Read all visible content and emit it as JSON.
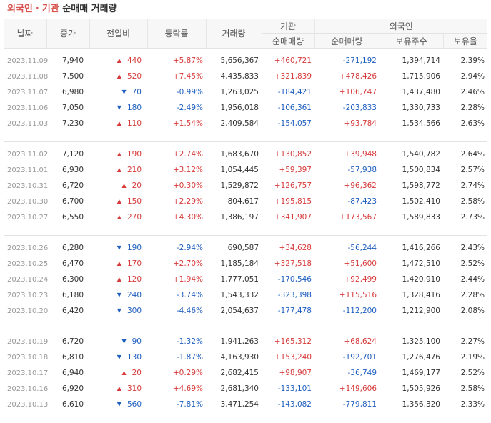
{
  "title": {
    "part1": "외국인",
    "dot": "·",
    "part2": "기관",
    "part3": "순매매 거래량"
  },
  "header": {
    "date": "날짜",
    "close": "종가",
    "change": "전일비",
    "rate": "등락률",
    "volume": "거래량",
    "institution": "기관",
    "foreigner": "외국인",
    "inst_net": "순매매량",
    "foreign_net": "순매매량",
    "holding": "보유주수",
    "ratio": "보유율"
  },
  "colors": {
    "up": "#d63a3a",
    "down": "#1f5fbf"
  },
  "groups": [
    [
      {
        "date": "2023.11.09",
        "close": "7,940",
        "dir": "up",
        "change": "440",
        "rate": "+5.87%",
        "volume": "5,656,367",
        "inst": "+460,721",
        "foreign": "-271,192",
        "holding": "1,394,714",
        "ratio": "2.39%"
      },
      {
        "date": "2023.11.08",
        "close": "7,500",
        "dir": "up",
        "change": "520",
        "rate": "+7.45%",
        "volume": "4,435,833",
        "inst": "+321,839",
        "foreign": "+478,426",
        "holding": "1,715,906",
        "ratio": "2.94%"
      },
      {
        "date": "2023.11.07",
        "close": "6,980",
        "dir": "down",
        "change": "70",
        "rate": "-0.99%",
        "volume": "1,263,025",
        "inst": "-184,421",
        "foreign": "+106,747",
        "holding": "1,437,480",
        "ratio": "2.46%"
      },
      {
        "date": "2023.11.06",
        "close": "7,050",
        "dir": "down",
        "change": "180",
        "rate": "-2.49%",
        "volume": "1,956,018",
        "inst": "-106,361",
        "foreign": "-203,833",
        "holding": "1,330,733",
        "ratio": "2.28%"
      },
      {
        "date": "2023.11.03",
        "close": "7,230",
        "dir": "up",
        "change": "110",
        "rate": "+1.54%",
        "volume": "2,409,584",
        "inst": "-154,057",
        "foreign": "+93,784",
        "holding": "1,534,566",
        "ratio": "2.63%"
      }
    ],
    [
      {
        "date": "2023.11.02",
        "close": "7,120",
        "dir": "up",
        "change": "190",
        "rate": "+2.74%",
        "volume": "1,683,670",
        "inst": "+130,852",
        "foreign": "+39,948",
        "holding": "1,540,782",
        "ratio": "2.64%"
      },
      {
        "date": "2023.11.01",
        "close": "6,930",
        "dir": "up",
        "change": "210",
        "rate": "+3.12%",
        "volume": "1,054,445",
        "inst": "+59,397",
        "foreign": "-57,938",
        "holding": "1,500,834",
        "ratio": "2.57%"
      },
      {
        "date": "2023.10.31",
        "close": "6,720",
        "dir": "up",
        "change": "20",
        "rate": "+0.30%",
        "volume": "1,529,872",
        "inst": "+126,757",
        "foreign": "+96,362",
        "holding": "1,598,772",
        "ratio": "2.74%"
      },
      {
        "date": "2023.10.30",
        "close": "6,700",
        "dir": "up",
        "change": "150",
        "rate": "+2.29%",
        "volume": "804,617",
        "inst": "+195,815",
        "foreign": "-87,423",
        "holding": "1,502,410",
        "ratio": "2.58%"
      },
      {
        "date": "2023.10.27",
        "close": "6,550",
        "dir": "up",
        "change": "270",
        "rate": "+4.30%",
        "volume": "1,386,197",
        "inst": "+341,907",
        "foreign": "+173,567",
        "holding": "1,589,833",
        "ratio": "2.73%"
      }
    ],
    [
      {
        "date": "2023.10.26",
        "close": "6,280",
        "dir": "down",
        "change": "190",
        "rate": "-2.94%",
        "volume": "690,587",
        "inst": "+34,628",
        "foreign": "-56,244",
        "holding": "1,416,266",
        "ratio": "2.43%"
      },
      {
        "date": "2023.10.25",
        "close": "6,470",
        "dir": "up",
        "change": "170",
        "rate": "+2.70%",
        "volume": "1,185,184",
        "inst": "+327,518",
        "foreign": "+51,600",
        "holding": "1,472,510",
        "ratio": "2.52%"
      },
      {
        "date": "2023.10.24",
        "close": "6,300",
        "dir": "up",
        "change": "120",
        "rate": "+1.94%",
        "volume": "1,777,051",
        "inst": "-170,546",
        "foreign": "+92,499",
        "holding": "1,420,910",
        "ratio": "2.44%"
      },
      {
        "date": "2023.10.23",
        "close": "6,180",
        "dir": "down",
        "change": "240",
        "rate": "-3.74%",
        "volume": "1,543,332",
        "inst": "-323,398",
        "foreign": "+115,516",
        "holding": "1,328,416",
        "ratio": "2.28%"
      },
      {
        "date": "2023.10.20",
        "close": "6,420",
        "dir": "down",
        "change": "300",
        "rate": "-4.46%",
        "volume": "2,054,637",
        "inst": "-177,478",
        "foreign": "-112,200",
        "holding": "1,212,900",
        "ratio": "2.08%"
      }
    ],
    [
      {
        "date": "2023.10.19",
        "close": "6,720",
        "dir": "down",
        "change": "90",
        "rate": "-1.32%",
        "volume": "1,941,263",
        "inst": "+165,312",
        "foreign": "+68,624",
        "holding": "1,325,100",
        "ratio": "2.27%"
      },
      {
        "date": "2023.10.18",
        "close": "6,810",
        "dir": "down",
        "change": "130",
        "rate": "-1.87%",
        "volume": "4,163,930",
        "inst": "+153,240",
        "foreign": "-192,701",
        "holding": "1,276,476",
        "ratio": "2.19%"
      },
      {
        "date": "2023.10.17",
        "close": "6,940",
        "dir": "up",
        "change": "20",
        "rate": "+0.29%",
        "volume": "2,682,415",
        "inst": "+98,907",
        "foreign": "-36,749",
        "holding": "1,469,177",
        "ratio": "2.52%"
      },
      {
        "date": "2023.10.16",
        "close": "6,920",
        "dir": "up",
        "change": "310",
        "rate": "+4.69%",
        "volume": "2,681,340",
        "inst": "-133,101",
        "foreign": "+149,606",
        "holding": "1,505,926",
        "ratio": "2.58%"
      },
      {
        "date": "2023.10.13",
        "close": "6,610",
        "dir": "down",
        "change": "560",
        "rate": "-7.81%",
        "volume": "3,471,254",
        "inst": "-143,082",
        "foreign": "-779,811",
        "holding": "1,356,320",
        "ratio": "2.33%"
      }
    ]
  ]
}
